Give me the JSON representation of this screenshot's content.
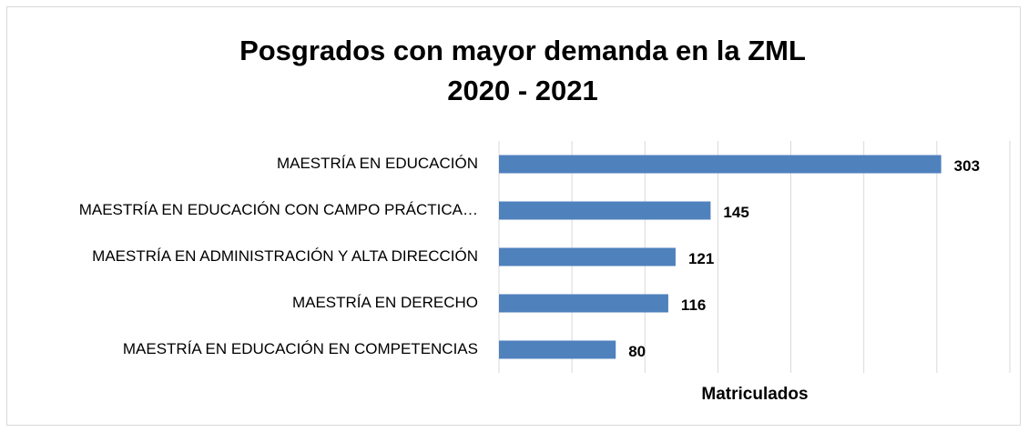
{
  "chart_data": {
    "type": "bar",
    "orientation": "horizontal",
    "title": [
      "Posgrados con mayor demanda en la ZML",
      "2020 - 2021"
    ],
    "categories": [
      "MAESTRÍA EN EDUCACIÓN",
      "MAESTRÍA EN EDUCACIÓN CON CAMPO PRÁCTICA…",
      "MAESTRÍA EN ADMINISTRACIÓN Y ALTA DIRECCIÓN",
      "MAESTRÍA EN DERECHO",
      "MAESTRÍA EN EDUCACIÓN EN COMPETENCIAS"
    ],
    "values": [
      303,
      145,
      121,
      116,
      80
    ],
    "color": "#4f81bd",
    "xlabel": "Matriculados",
    "xlim": [
      0,
      350
    ],
    "xticks": [
      0,
      50,
      100,
      150,
      200,
      250,
      300,
      350
    ],
    "grid": true
  }
}
